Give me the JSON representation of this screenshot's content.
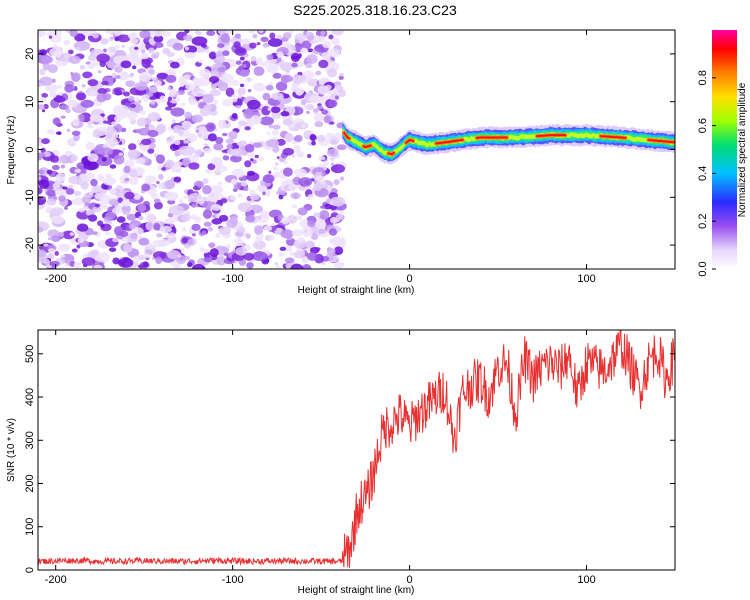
{
  "title": "S225.2025.318.16.23.C23",
  "chart_data": [
    {
      "type": "heatmap",
      "xlabel": "Height of straight line (km)",
      "ylabel": "Frequency (Hz)",
      "xlim": [
        -210,
        150
      ],
      "ylim": [
        -25,
        25
      ],
      "xticks": [
        -200,
        -100,
        0,
        100
      ],
      "yticks": [
        -20,
        -10,
        0,
        10,
        20
      ],
      "noise_region_x": [
        -210,
        -38
      ],
      "signal_ridge": {
        "x": [
          -38,
          -35,
          -30,
          -25,
          -20,
          -15,
          -10,
          -5,
          0,
          5,
          10,
          20,
          40,
          60,
          80,
          100,
          120,
          150
        ],
        "freq": [
          4,
          2.5,
          1.5,
          0.5,
          1,
          -0.5,
          -1,
          0.5,
          2,
          1.5,
          1,
          1.5,
          2.5,
          2.5,
          3,
          3,
          2.5,
          1.5
        ]
      },
      "colorbar": {
        "label": "Normalized spectral amplitude",
        "ticks": [
          "0.0",
          "0.2",
          "0.4",
          "0.6",
          "0.8"
        ],
        "range": [
          0,
          1
        ],
        "colors": [
          "#ffffff",
          "#d7b7f5",
          "#7a1ee0",
          "#2020ff",
          "#00c8ff",
          "#00e060",
          "#c8ff00",
          "#ffe000",
          "#ff8000",
          "#ff0000",
          "#ff00a0"
        ]
      }
    },
    {
      "type": "line",
      "xlabel": "Height of straight line (km)",
      "ylabel": "SNR (10 * v/v)",
      "xlim": [
        -210,
        150
      ],
      "ylim": [
        0,
        555
      ],
      "xticks": [
        -200,
        -100,
        0,
        100
      ],
      "yticks": [
        0,
        100,
        200,
        300,
        400,
        500
      ],
      "line_color": "#e83030",
      "series": [
        {
          "name": "SNR",
          "x": [
            -210,
            -190,
            -170,
            -150,
            -130,
            -110,
            -90,
            -70,
            -50,
            -38,
            -33,
            -30,
            -27,
            -24,
            -20,
            -17,
            -14,
            -10,
            -5,
            0,
            5,
            10,
            15,
            20,
            25,
            30,
            35,
            40,
            45,
            50,
            55,
            60,
            65,
            70,
            75,
            80,
            85,
            90,
            95,
            100,
            105,
            110,
            115,
            120,
            125,
            130,
            135,
            140,
            145,
            150
          ],
          "values": [
            20,
            22,
            20,
            21,
            20,
            22,
            20,
            21,
            20,
            20,
            60,
            130,
            160,
            170,
            230,
            290,
            330,
            340,
            360,
            330,
            360,
            380,
            400,
            420,
            300,
            410,
            430,
            440,
            400,
            470,
            480,
            360,
            490,
            440,
            470,
            480,
            460,
            500,
            400,
            480,
            470,
            460,
            490,
            520,
            470,
            420,
            480,
            510,
            440,
            500
          ]
        }
      ]
    }
  ]
}
